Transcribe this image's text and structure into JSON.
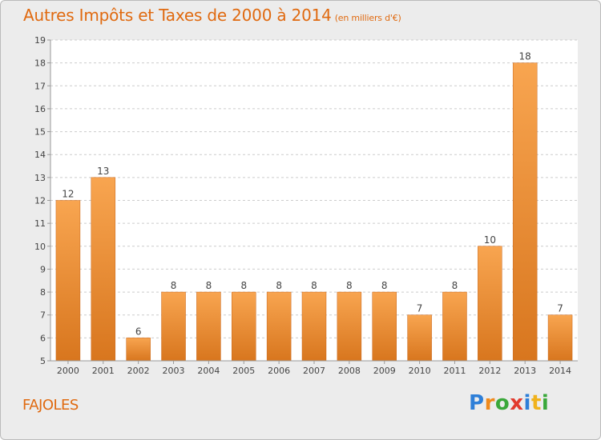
{
  "header": {
    "title": "Autres Impôts et Taxes de 2000 à 2014",
    "subtitle": "(en milliers d'€)"
  },
  "footer": {
    "place": "FAJOLES",
    "logo_text": "Proxiti",
    "logo_letters": [
      {
        "char": "P",
        "color": "#2e7fd8"
      },
      {
        "char": "r",
        "color": "#f08a1c"
      },
      {
        "char": "o",
        "color": "#3aa83a"
      },
      {
        "char": "x",
        "color": "#e23b2e"
      },
      {
        "char": "i",
        "color": "#2e7fd8"
      },
      {
        "char": "t",
        "color": "#f0b21c"
      },
      {
        "char": "i",
        "color": "#3aa83a"
      }
    ]
  },
  "colors": {
    "accent": "#e06a10",
    "bar_light": "#f8a550",
    "bar_dark": "#d8761e",
    "grid": "#cccccc",
    "plot_background": "#ffffff"
  },
  "chart_data": {
    "type": "bar",
    "title": "Autres Impôts et Taxes de 2000 à 2014",
    "subtitle": "(en milliers d'€)",
    "xlabel": "",
    "ylabel": "",
    "categories": [
      "2000",
      "2001",
      "2002",
      "2003",
      "2004",
      "2005",
      "2006",
      "2007",
      "2008",
      "2009",
      "2010",
      "2011",
      "2012",
      "2013",
      "2014"
    ],
    "values": [
      12,
      13,
      6,
      8,
      8,
      8,
      8,
      8,
      8,
      8,
      7,
      8,
      10,
      18,
      7
    ],
    "ylim": [
      5,
      19
    ],
    "yticks": [
      5,
      6,
      7,
      8,
      9,
      10,
      11,
      12,
      13,
      14,
      15,
      16,
      17,
      18,
      19
    ],
    "grid": true,
    "data_labels": true
  }
}
